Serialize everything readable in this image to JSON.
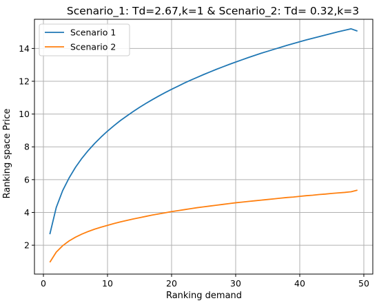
{
  "chart_data": {
    "type": "line",
    "title": "Scenario_1: Td=2.67,k=1 & Scenario_2: Td= 0.32,k=3",
    "xlabel": "Ranking demand",
    "ylabel": "Ranking space Price",
    "xlim": [
      -1.4,
      51.4
    ],
    "ylim": [
      0.24,
      15.78
    ],
    "grid": true,
    "legend_position": "top-left",
    "x_ticks": [
      0,
      10,
      20,
      30,
      40,
      50
    ],
    "y_ticks": [
      2,
      4,
      6,
      8,
      10,
      12,
      14
    ],
    "x_tick_labels": [
      "0",
      "10",
      "20",
      "30",
      "40",
      "50"
    ],
    "y_tick_labels": [
      "2",
      "4",
      "6",
      "8",
      "10",
      "12",
      "14"
    ],
    "x": [
      1,
      2,
      3,
      4,
      5,
      6,
      7,
      8,
      9,
      10,
      11,
      12,
      13,
      14,
      15,
      16,
      17,
      18,
      19,
      20,
      21,
      22,
      23,
      24,
      25,
      26,
      27,
      28,
      29,
      30,
      31,
      32,
      33,
      34,
      35,
      36,
      37,
      38,
      39,
      40,
      41,
      42,
      43,
      44,
      45,
      46,
      47,
      48,
      49
    ],
    "series": [
      {
        "name": "Scenario 1",
        "color": "#1f77b4",
        "values": [
          2.67,
          4.3,
          5.33,
          6.1,
          6.75,
          7.3,
          7.78,
          8.21,
          8.6,
          8.96,
          9.29,
          9.6,
          9.88,
          10.15,
          10.41,
          10.65,
          10.88,
          11.1,
          11.31,
          11.51,
          11.7,
          11.89,
          12.07,
          12.24,
          12.41,
          12.57,
          12.73,
          12.88,
          13.03,
          13.17,
          13.31,
          13.45,
          13.58,
          13.71,
          13.83,
          13.95,
          14.07,
          14.19,
          14.3,
          14.41,
          14.52,
          14.62,
          14.72,
          14.82,
          14.92,
          15.02,
          15.11,
          15.2,
          15.06
        ]
      },
      {
        "name": "Scenario 2",
        "color": "#ff7f0e",
        "values": [
          0.96,
          1.58,
          1.97,
          2.26,
          2.49,
          2.68,
          2.84,
          2.98,
          3.1,
          3.21,
          3.32,
          3.42,
          3.51,
          3.6,
          3.68,
          3.76,
          3.84,
          3.91,
          3.98,
          4.05,
          4.11,
          4.17,
          4.23,
          4.29,
          4.34,
          4.39,
          4.44,
          4.49,
          4.54,
          4.59,
          4.63,
          4.67,
          4.71,
          4.75,
          4.79,
          4.83,
          4.87,
          4.91,
          4.94,
          4.98,
          5.02,
          5.05,
          5.09,
          5.12,
          5.16,
          5.19,
          5.22,
          5.26,
          5.36
        ]
      }
    ]
  }
}
